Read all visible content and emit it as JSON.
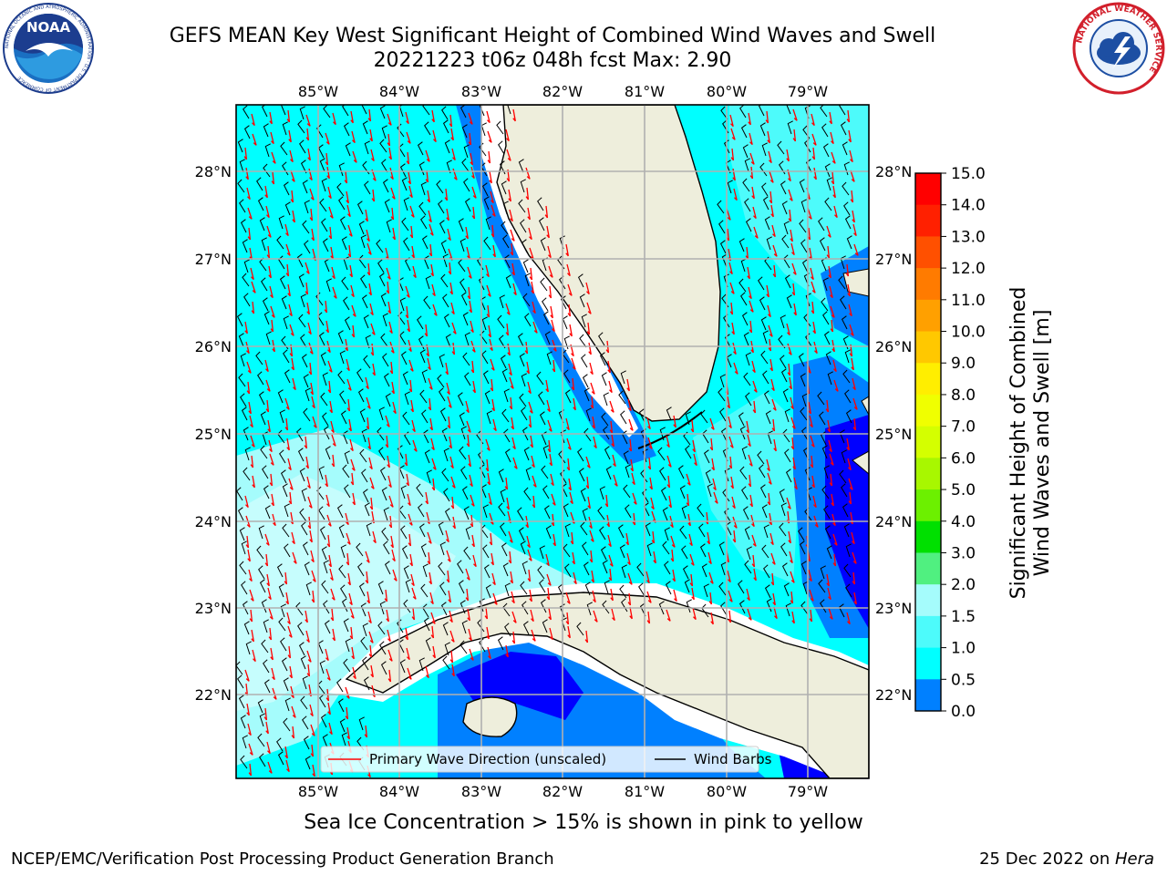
{
  "header": {
    "title_line1": "GEFS MEAN Key West Significant Height of Combined Wind Waves and Swell",
    "title_line2": "20221223 t06z 048h fcst   Max: 2.90"
  },
  "logos": {
    "noaa_text": "NOAA",
    "noaa_ring_text": "NATIONAL OCEANIC AND ATMOSPHERIC ADMINISTRATION · U.S. DEPARTMENT OF COMMERCE",
    "nws_ring_text": "NATIONAL WEATHER SERVICE"
  },
  "map": {
    "lon_labels": [
      "85°W",
      "84°W",
      "83°W",
      "82°W",
      "81°W",
      "80°W",
      "79°W"
    ],
    "lat_labels": [
      "28°N",
      "27°N",
      "26°N",
      "25°N",
      "24°N",
      "23°N",
      "22°N"
    ],
    "legend": {
      "wave_direction": "Primary Wave Direction (unscaled)",
      "wind_barbs": "Wind Barbs"
    },
    "colors": {
      "land": "#eeeedc",
      "ocean_main": "#00ffff",
      "ocean_light": "#4dfbfb",
      "ocean_high": "#a5fcfc",
      "mid_blue": "#0080ff",
      "deep_blue": "#0000ff",
      "arrow": "#ff0000",
      "barb": "#000000",
      "grid": "#b0b0b0"
    }
  },
  "colorbar": {
    "label_line1": "Significant Height of Combined",
    "label_line2": "Wind Waves and Swell [m]",
    "ticks": [
      "15.0",
      "14.0",
      "13.0",
      "12.0",
      "11.0",
      "10.0",
      "9.0",
      "8.0",
      "7.0",
      "6.0",
      "5.0",
      "4.0",
      "3.0",
      "2.0",
      "1.5",
      "1.0",
      "0.5",
      "0.0"
    ],
    "colors": [
      "#ff0000",
      "#ff2000",
      "#ff5000",
      "#ff7b00",
      "#ffa000",
      "#ffc800",
      "#ffee00",
      "#f0ff00",
      "#d4ff00",
      "#a8f700",
      "#6cf000",
      "#00e000",
      "#50f080",
      "#a5fcfc",
      "#4dfbfb",
      "#00ffff",
      "#0080ff",
      "#0000ff"
    ]
  },
  "caption": "Sea Ice Concentration > 15% is shown in pink to yellow",
  "footer": {
    "left": "NCEP/EMC/Verification Post Processing Product Generation Branch",
    "right_date": "25 Dec 2022 on ",
    "right_host": "Hera"
  }
}
